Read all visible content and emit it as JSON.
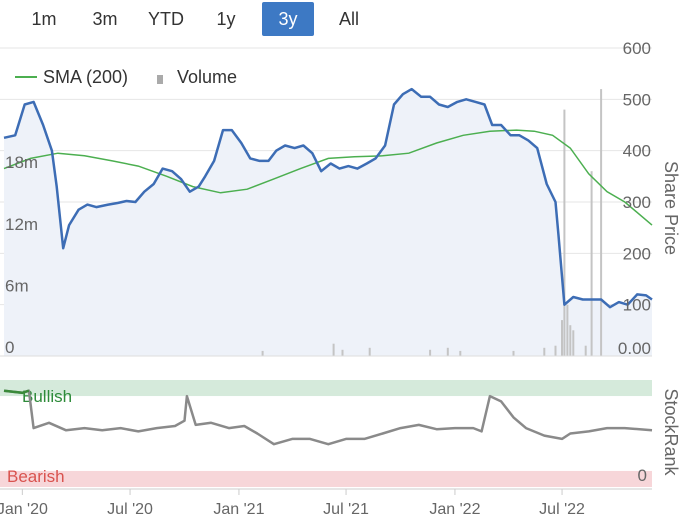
{
  "range_selector": {
    "buttons": [
      {
        "label": "1m",
        "active": false
      },
      {
        "label": "3m",
        "active": false
      },
      {
        "label": "YTD",
        "active": false
      },
      {
        "label": "1y",
        "active": false
      },
      {
        "label": "3y",
        "active": true
      },
      {
        "label": "All",
        "active": false
      }
    ]
  },
  "colors": {
    "price_line": "#3d6db5",
    "sma_line": "#4caf50",
    "area_fill": "#eef2f9",
    "volume_bar": "#c4c4c4",
    "stockrank_line": "#8a8a8a",
    "stockrank_high": "#3a8a3a",
    "bullish_band": "#d5eadb",
    "bearish_band": "#f7d6d9",
    "bullish_text": "#2e8b3a",
    "bearish_text": "#d9534f",
    "active_button": "#3d79c4"
  },
  "chart_data": [
    {
      "type": "line",
      "legend": [
        "SMA (200)",
        "Volume"
      ],
      "y_right_axis": {
        "label": "Share Price",
        "ticks": [
          "600",
          "500",
          "400",
          "300",
          "200",
          "100",
          "0.00"
        ],
        "range": [
          0,
          600
        ]
      },
      "y_left_axis": {
        "label": "",
        "ticks": [
          "18m",
          "12m",
          "6m",
          "0"
        ],
        "range": [
          0,
          30
        ]
      },
      "x_axis": {
        "ticks": [
          "Jan '20",
          "Jul '20",
          "Jan '21",
          "Jul '21",
          "Jan '22",
          "Jul '22"
        ]
      },
      "x_range": [
        "2019-12-01",
        "2022-11-30"
      ],
      "series": [
        {
          "name": "Share Price",
          "x": [
            "2019-12-01",
            "2019-12-20",
            "2020-01-05",
            "2020-01-20",
            "2020-02-05",
            "2020-02-20",
            "2020-02-28",
            "2020-03-10",
            "2020-03-20",
            "2020-04-05",
            "2020-04-20",
            "2020-05-05",
            "2020-05-25",
            "2020-06-10",
            "2020-06-25",
            "2020-07-10",
            "2020-07-25",
            "2020-08-10",
            "2020-08-25",
            "2020-09-10",
            "2020-09-25",
            "2020-10-10",
            "2020-10-25",
            "2020-11-05",
            "2020-11-20",
            "2020-12-05",
            "2020-12-20",
            "2021-01-05",
            "2021-01-20",
            "2021-02-05",
            "2021-02-20",
            "2021-03-05",
            "2021-03-20",
            "2021-04-05",
            "2021-04-20",
            "2021-05-05",
            "2021-05-20",
            "2021-06-05",
            "2021-06-20",
            "2021-07-05",
            "2021-07-20",
            "2021-08-05",
            "2021-08-20",
            "2021-09-05",
            "2021-09-20",
            "2021-10-05",
            "2021-10-20",
            "2021-11-05",
            "2021-11-20",
            "2021-12-05",
            "2021-12-20",
            "2022-01-05",
            "2022-01-20",
            "2022-02-05",
            "2022-02-20",
            "2022-03-05",
            "2022-03-20",
            "2022-04-05",
            "2022-04-20",
            "2022-05-05",
            "2022-05-20",
            "2022-06-05",
            "2022-06-20",
            "2022-06-25",
            "2022-07-05",
            "2022-07-20",
            "2022-08-05",
            "2022-08-20",
            "2022-09-05",
            "2022-09-20",
            "2022-10-05",
            "2022-10-20",
            "2022-11-05",
            "2022-11-20",
            "2022-11-30"
          ],
          "values": [
            425,
            430,
            490,
            495,
            450,
            400,
            330,
            210,
            255,
            285,
            295,
            290,
            295,
            298,
            302,
            300,
            320,
            335,
            365,
            360,
            345,
            320,
            330,
            350,
            380,
            440,
            440,
            415,
            385,
            380,
            380,
            400,
            410,
            405,
            410,
            395,
            360,
            375,
            365,
            370,
            365,
            375,
            385,
            410,
            490,
            510,
            520,
            505,
            505,
            490,
            485,
            495,
            500,
            495,
            490,
            450,
            450,
            430,
            430,
            420,
            405,
            335,
            300,
            235,
            100,
            115,
            110,
            110,
            110,
            95,
            105,
            100,
            120,
            118,
            110
          ]
        },
        {
          "name": "SMA (200)",
          "x": [
            "2019-12-01",
            "2020-01-15",
            "2020-03-01",
            "2020-04-15",
            "2020-06-01",
            "2020-07-15",
            "2020-09-01",
            "2020-10-15",
            "2020-12-01",
            "2021-01-15",
            "2021-03-01",
            "2021-04-15",
            "2021-06-01",
            "2021-07-15",
            "2021-09-01",
            "2021-10-15",
            "2021-12-01",
            "2022-01-15",
            "2022-03-01",
            "2022-04-15",
            "2022-05-15",
            "2022-06-15",
            "2022-07-15",
            "2022-08-15",
            "2022-09-15",
            "2022-10-15",
            "2022-11-30"
          ],
          "values": [
            365,
            385,
            395,
            390,
            380,
            370,
            350,
            330,
            318,
            325,
            345,
            365,
            385,
            388,
            390,
            395,
            415,
            430,
            438,
            440,
            438,
            430,
            405,
            355,
            320,
            300,
            255
          ]
        },
        {
          "name": "Volume",
          "x": [
            "2021-02-10",
            "2021-06-10",
            "2021-06-25",
            "2021-08-10",
            "2021-11-20",
            "2021-12-20",
            "2022-01-10",
            "2022-04-10",
            "2022-06-01",
            "2022-06-20",
            "2022-07-01",
            "2022-07-05",
            "2022-07-10",
            "2022-07-15",
            "2022-07-20",
            "2022-08-10",
            "2022-08-20",
            "2022-09-05"
          ],
          "values": [
            0.5,
            1.2,
            0.6,
            0.8,
            0.6,
            0.8,
            0.5,
            0.5,
            0.8,
            1.0,
            3.5,
            24,
            5,
            3,
            2.5,
            1,
            18,
            26
          ]
        }
      ]
    },
    {
      "type": "line",
      "y_right_axis": {
        "label": "StockRank",
        "ticks": [
          "0"
        ],
        "range": [
          0,
          100
        ]
      },
      "bands": [
        {
          "label": "Bullish",
          "from": 85,
          "to": 100
        },
        {
          "label": "Bearish",
          "from": 0,
          "to": 15
        }
      ],
      "series": [
        {
          "name": "StockRank",
          "x": [
            "2019-12-01",
            "2020-01-01",
            "2020-01-12",
            "2020-01-20",
            "2020-02-15",
            "2020-03-15",
            "2020-04-15",
            "2020-05-15",
            "2020-06-15",
            "2020-07-15",
            "2020-08-15",
            "2020-09-15",
            "2020-10-01",
            "2020-10-05",
            "2020-10-20",
            "2020-11-15",
            "2020-12-15",
            "2021-01-10",
            "2021-02-01",
            "2021-03-01",
            "2021-04-01",
            "2021-05-01",
            "2021-06-01",
            "2021-07-01",
            "2021-08-01",
            "2021-09-01",
            "2021-10-01",
            "2021-11-01",
            "2021-12-01",
            "2022-01-01",
            "2022-02-01",
            "2022-02-15",
            "2022-03-01",
            "2022-03-20",
            "2022-04-10",
            "2022-05-01",
            "2022-06-01",
            "2022-07-01",
            "2022-07-15",
            "2022-08-15",
            "2022-09-15",
            "2022-10-15",
            "2022-11-30"
          ],
          "values": [
            90,
            88,
            90,
            55,
            60,
            53,
            55,
            53,
            55,
            52,
            55,
            57,
            62,
            85,
            58,
            60,
            55,
            57,
            50,
            40,
            45,
            45,
            40,
            45,
            45,
            50,
            55,
            58,
            54,
            55,
            55,
            52,
            85,
            80,
            65,
            55,
            48,
            45,
            50,
            52,
            55,
            55,
            53
          ]
        }
      ]
    }
  ]
}
